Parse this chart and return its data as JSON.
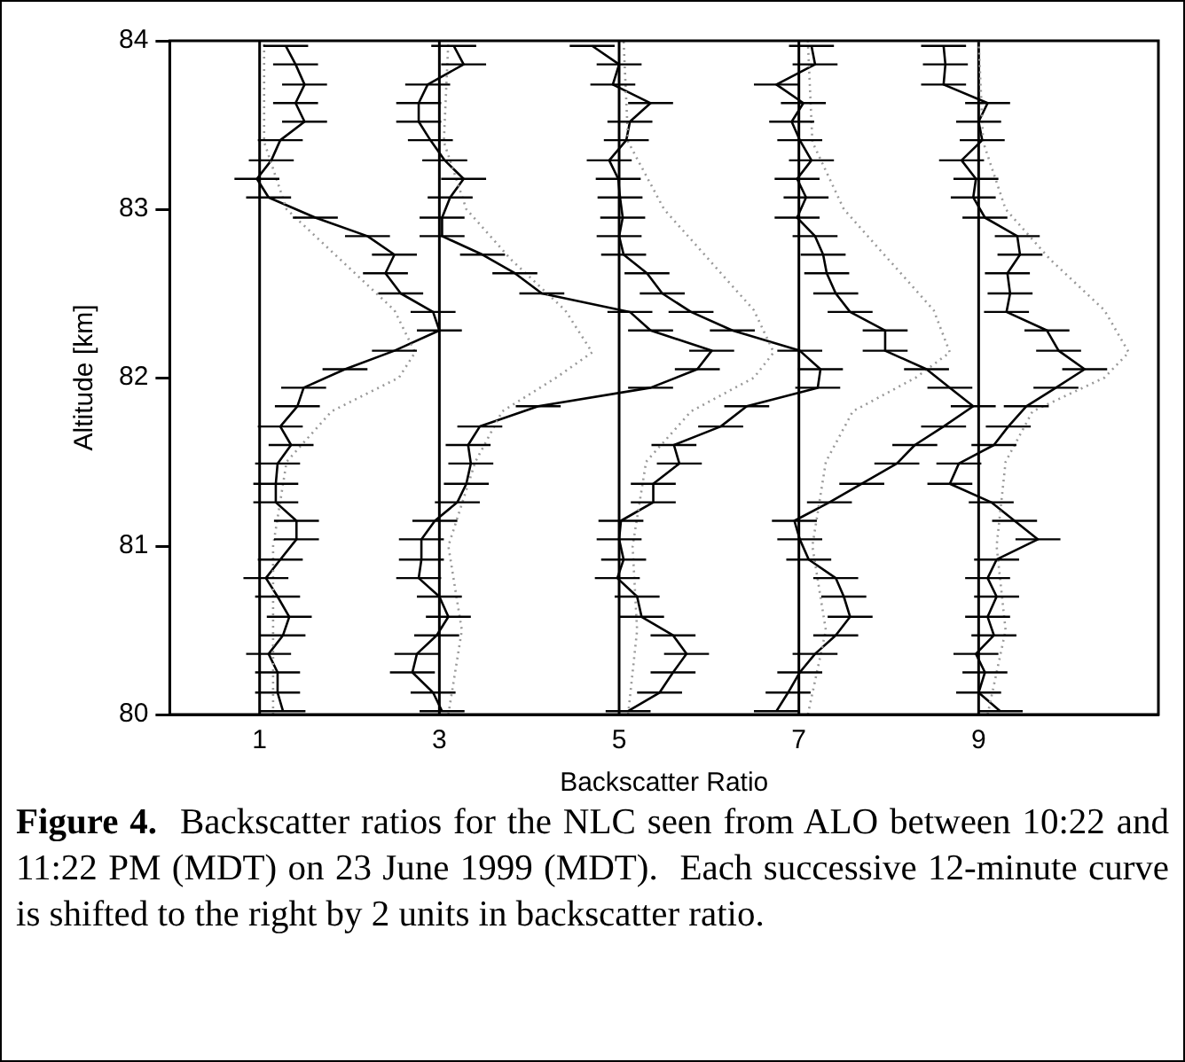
{
  "chart_data": {
    "type": "line",
    "xlabel": "Backscatter Ratio",
    "ylabel": "Altitude [km]",
    "xlim": [
      0,
      11
    ],
    "xticks": [
      1,
      3,
      5,
      7,
      9
    ],
    "ylim": [
      80,
      84
    ],
    "yticks": [
      80,
      81,
      82,
      83,
      84
    ],
    "legend": false,
    "ref_lines": [
      {
        "axis": "x",
        "value": 1,
        "color": "#000000"
      },
      {
        "axis": "x",
        "value": 3,
        "color": "#000000"
      },
      {
        "axis": "x",
        "value": 5,
        "color": "#000000"
      },
      {
        "axis": "x",
        "value": 7,
        "color": "#000000"
      },
      {
        "axis": "x",
        "value": 9,
        "color": "#000000"
      }
    ],
    "series": [
      {
        "color": "#999999",
        "line_style": "dotted",
        "x": [
          1.15,
          1.15,
          1.15,
          1.3,
          1.8,
          2.55,
          2.73,
          2.5,
          1.9,
          1.3,
          1.05,
          1.05
        ],
        "values": [
          80,
          80.5,
          81,
          81.5,
          81.8,
          82,
          82.15,
          82.4,
          82.7,
          83,
          83.4,
          84
        ]
      },
      {
        "color": "#999999",
        "line_style": "dotted",
        "x": [
          3.1,
          3.25,
          3.1,
          3.4,
          3.7,
          4.3,
          4.7,
          4.4,
          3.8,
          3.3,
          3.05,
          3.1
        ],
        "values": [
          80,
          80.5,
          81,
          81.5,
          81.8,
          82,
          82.15,
          82.4,
          82.7,
          83,
          83.4,
          84
        ]
      },
      {
        "color": "#999999",
        "line_style": "dotted",
        "x": [
          5.1,
          5.2,
          5.15,
          5.3,
          5.8,
          6.5,
          6.72,
          6.5,
          6.0,
          5.5,
          5.1,
          5.05
        ],
        "values": [
          80,
          80.5,
          81,
          81.5,
          81.8,
          82,
          82.15,
          82.4,
          82.7,
          83,
          83.4,
          84
        ]
      },
      {
        "color": "#999999",
        "line_style": "dotted",
        "x": [
          7.1,
          7.3,
          7.15,
          7.3,
          7.6,
          8.3,
          8.68,
          8.5,
          8.0,
          7.5,
          7.15,
          7.1
        ],
        "values": [
          80,
          80.5,
          81,
          81.5,
          81.8,
          82,
          82.15,
          82.4,
          82.7,
          83,
          83.4,
          84
        ]
      },
      {
        "color": "#999999",
        "line_style": "dotted",
        "x": [
          9.1,
          9.3,
          9.2,
          9.3,
          9.6,
          10.4,
          10.67,
          10.4,
          9.8,
          9.3,
          9.05,
          9.0
        ],
        "values": [
          80,
          80.5,
          81,
          81.5,
          81.8,
          82,
          82.15,
          82.4,
          82.7,
          83,
          83.4,
          84
        ]
      },
      {
        "color": "#000000",
        "line_style": "solid",
        "x": [
          1.26,
          1.2,
          1.2,
          1.1,
          1.26,
          1.33,
          1.2,
          1.07,
          1.23,
          1.41,
          1.41,
          1.18,
          1.18,
          1.2,
          1.35,
          1.23,
          1.42,
          1.49,
          1.95,
          2.5,
          3.0,
          2.93,
          2.57,
          2.4,
          2.5,
          2.2,
          1.62,
          1.1,
          0.97,
          1.13,
          1.23,
          1.5,
          1.4,
          1.5,
          1.4,
          1.29
        ],
        "values": [
          80.02,
          80.13,
          80.25,
          80.36,
          80.47,
          80.58,
          80.7,
          80.81,
          80.92,
          81.04,
          81.15,
          81.26,
          81.37,
          81.49,
          81.6,
          81.71,
          81.83,
          81.94,
          82.05,
          82.16,
          82.28,
          82.39,
          82.5,
          82.62,
          82.73,
          82.84,
          82.95,
          83.07,
          83.18,
          83.29,
          83.41,
          83.52,
          83.63,
          83.74,
          83.86,
          83.97
        ],
        "xerrors": [
          0.25,
          0.25,
          0.25,
          0.25,
          0.25,
          0.25,
          0.25,
          0.25,
          0.25,
          0.25,
          0.25,
          0.25,
          0.25,
          0.25,
          0.25,
          0.25,
          0.25,
          0.25,
          0.25,
          0.25,
          0.25,
          0.25,
          0.25,
          0.25,
          0.25,
          0.25,
          0.25,
          0.25,
          0.25,
          0.25,
          0.25,
          0.25,
          0.25,
          0.25,
          0.25,
          0.25
        ]
      },
      {
        "color": "#000000",
        "line_style": "solid",
        "x": [
          3.03,
          2.93,
          2.7,
          2.75,
          2.97,
          3.1,
          3.0,
          2.77,
          2.8,
          2.8,
          2.95,
          3.2,
          3.3,
          3.35,
          3.32,
          3.45,
          4.1,
          5.35,
          5.87,
          6.03,
          5.35,
          5.12,
          4.14,
          3.84,
          3.48,
          3.03,
          3.03,
          3.12,
          3.27,
          3.06,
          2.9,
          2.77,
          2.77,
          2.87,
          3.27,
          3.16
        ],
        "values": [
          80.02,
          80.13,
          80.25,
          80.36,
          80.47,
          80.58,
          80.7,
          80.81,
          80.92,
          81.04,
          81.15,
          81.26,
          81.37,
          81.49,
          81.6,
          81.71,
          81.83,
          81.94,
          82.05,
          82.16,
          82.28,
          82.39,
          82.5,
          82.62,
          82.73,
          82.84,
          82.95,
          83.07,
          83.18,
          83.29,
          83.41,
          83.52,
          83.63,
          83.74,
          83.86,
          83.97
        ],
        "xerrors": [
          0.25,
          0.25,
          0.25,
          0.25,
          0.25,
          0.25,
          0.25,
          0.25,
          0.25,
          0.25,
          0.25,
          0.25,
          0.25,
          0.25,
          0.25,
          0.25,
          0.25,
          0.25,
          0.25,
          0.25,
          0.25,
          0.25,
          0.25,
          0.25,
          0.25,
          0.25,
          0.25,
          0.25,
          0.25,
          0.25,
          0.25,
          0.25,
          0.25,
          0.25,
          0.25,
          0.25
        ]
      },
      {
        "color": "#000000",
        "line_style": "solid",
        "x": [
          5.1,
          5.45,
          5.6,
          5.75,
          5.6,
          5.25,
          5.2,
          4.98,
          5.05,
          5.0,
          5.02,
          5.38,
          5.38,
          5.67,
          5.61,
          6.13,
          6.42,
          7.21,
          7.24,
          7.01,
          6.26,
          5.8,
          5.48,
          5.31,
          5.05,
          5.0,
          5.04,
          5.01,
          4.99,
          4.89,
          5.08,
          5.12,
          5.35,
          4.93,
          5.0,
          4.7
        ],
        "values": [
          80.02,
          80.13,
          80.25,
          80.36,
          80.47,
          80.58,
          80.7,
          80.81,
          80.92,
          81.04,
          81.15,
          81.26,
          81.37,
          81.49,
          81.6,
          81.71,
          81.83,
          81.94,
          82.05,
          82.16,
          82.28,
          82.39,
          82.5,
          82.62,
          82.73,
          82.84,
          82.95,
          83.07,
          83.18,
          83.29,
          83.41,
          83.52,
          83.63,
          83.74,
          83.86,
          83.97
        ],
        "xerrors": [
          0.25,
          0.25,
          0.25,
          0.25,
          0.25,
          0.25,
          0.25,
          0.25,
          0.25,
          0.25,
          0.25,
          0.25,
          0.25,
          0.25,
          0.25,
          0.25,
          0.25,
          0.25,
          0.25,
          0.25,
          0.25,
          0.25,
          0.25,
          0.25,
          0.25,
          0.25,
          0.25,
          0.25,
          0.25,
          0.25,
          0.25,
          0.25,
          0.25,
          0.25,
          0.25,
          0.25
        ]
      },
      {
        "color": "#000000",
        "line_style": "solid",
        "x": [
          6.75,
          6.88,
          7.01,
          7.18,
          7.41,
          7.57,
          7.5,
          7.41,
          7.11,
          7.01,
          6.95,
          7.34,
          7.7,
          8.09,
          8.29,
          8.61,
          8.94,
          8.68,
          8.42,
          7.96,
          7.96,
          7.57,
          7.41,
          7.31,
          7.27,
          7.18,
          6.98,
          7.08,
          6.98,
          7.14,
          7.01,
          6.92,
          7.05,
          6.75,
          7.18,
          7.14
        ],
        "values": [
          80.02,
          80.13,
          80.25,
          80.36,
          80.47,
          80.58,
          80.7,
          80.81,
          80.92,
          81.04,
          81.15,
          81.26,
          81.37,
          81.49,
          81.6,
          81.71,
          81.83,
          81.94,
          82.05,
          82.16,
          82.28,
          82.39,
          82.5,
          82.62,
          82.73,
          82.84,
          82.95,
          83.07,
          83.18,
          83.29,
          83.41,
          83.52,
          83.63,
          83.74,
          83.86,
          83.97
        ],
        "xerrors": [
          0.25,
          0.25,
          0.25,
          0.25,
          0.25,
          0.25,
          0.25,
          0.25,
          0.25,
          0.25,
          0.25,
          0.25,
          0.25,
          0.25,
          0.25,
          0.25,
          0.25,
          0.25,
          0.25,
          0.25,
          0.25,
          0.25,
          0.25,
          0.25,
          0.25,
          0.25,
          0.25,
          0.25,
          0.25,
          0.25,
          0.25,
          0.25,
          0.25,
          0.25,
          0.25,
          0.25
        ]
      },
      {
        "color": "#000000",
        "line_style": "solid",
        "x": [
          9.24,
          9.0,
          9.07,
          8.97,
          9.17,
          9.1,
          9.2,
          9.1,
          9.2,
          9.66,
          9.4,
          9.14,
          8.68,
          8.78,
          9.17,
          9.33,
          9.53,
          9.86,
          10.18,
          9.89,
          9.76,
          9.31,
          9.35,
          9.32,
          9.46,
          9.43,
          9.07,
          8.94,
          8.97,
          8.81,
          9.04,
          9.0,
          9.1,
          8.61,
          8.63,
          8.61
        ],
        "values": [
          80.02,
          80.13,
          80.25,
          80.36,
          80.47,
          80.58,
          80.7,
          80.81,
          80.92,
          81.04,
          81.15,
          81.26,
          81.37,
          81.49,
          81.6,
          81.71,
          81.83,
          81.94,
          82.05,
          82.16,
          82.28,
          82.39,
          82.5,
          82.62,
          82.73,
          82.84,
          82.95,
          83.07,
          83.18,
          83.29,
          83.41,
          83.52,
          83.63,
          83.74,
          83.86,
          83.97
        ],
        "xerrors": [
          0.25,
          0.25,
          0.25,
          0.25,
          0.25,
          0.25,
          0.25,
          0.25,
          0.25,
          0.25,
          0.25,
          0.25,
          0.25,
          0.25,
          0.25,
          0.25,
          0.25,
          0.25,
          0.25,
          0.25,
          0.25,
          0.25,
          0.25,
          0.25,
          0.25,
          0.25,
          0.25,
          0.25,
          0.25,
          0.25,
          0.25,
          0.25,
          0.25,
          0.25,
          0.25,
          0.25
        ]
      }
    ],
    "annotations": [
      "Figure 4.",
      "Backscatter ratios for the NLC seen from ALO between 10:22 and 11:22 PM (MDT) on 23 June 1999 (MDT).  Each successive 12-minute curve is shifted to the right by 2 units in backscatter ratio."
    ]
  }
}
